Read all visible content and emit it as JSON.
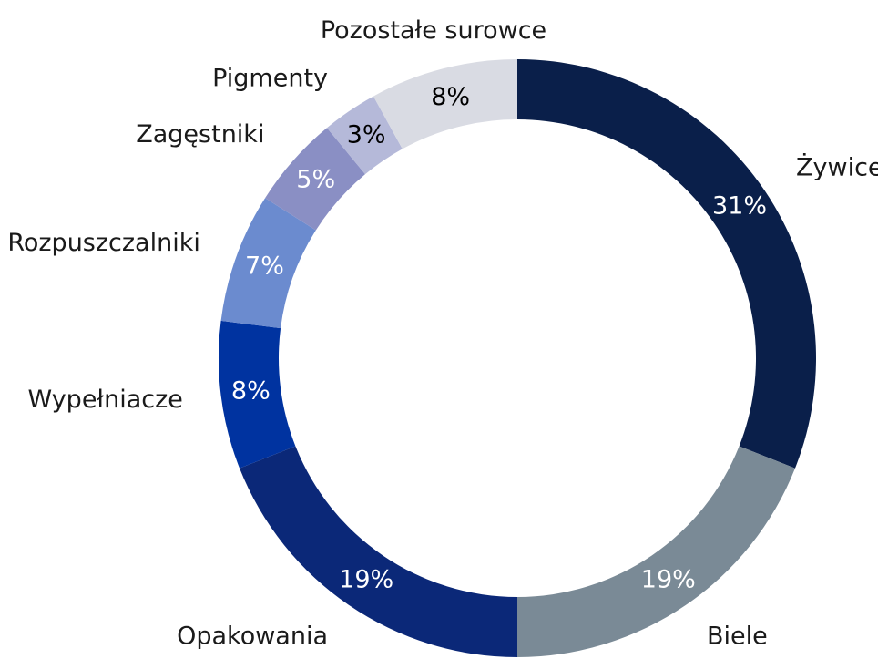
{
  "chart_data": {
    "type": "donut",
    "categories": [
      "Żywice",
      "Biele",
      "Opakowania",
      "Wypełniacze",
      "Rozpuszczalniki",
      "Zagęstniki",
      "Pigmenty",
      "Pozostałe surowce"
    ],
    "values": [
      31,
      19,
      19,
      8,
      7,
      5,
      3,
      8
    ],
    "value_labels": [
      "31%",
      "19%",
      "19%",
      "8%",
      "7%",
      "5%",
      "3%",
      "8%"
    ],
    "colors": [
      "#0a1f4a",
      "#7a8a96",
      "#0b2878",
      "#0033a0",
      "#6b8bcf",
      "#8a8fc4",
      "#b5b9d9",
      "#d9dbe3"
    ]
  }
}
